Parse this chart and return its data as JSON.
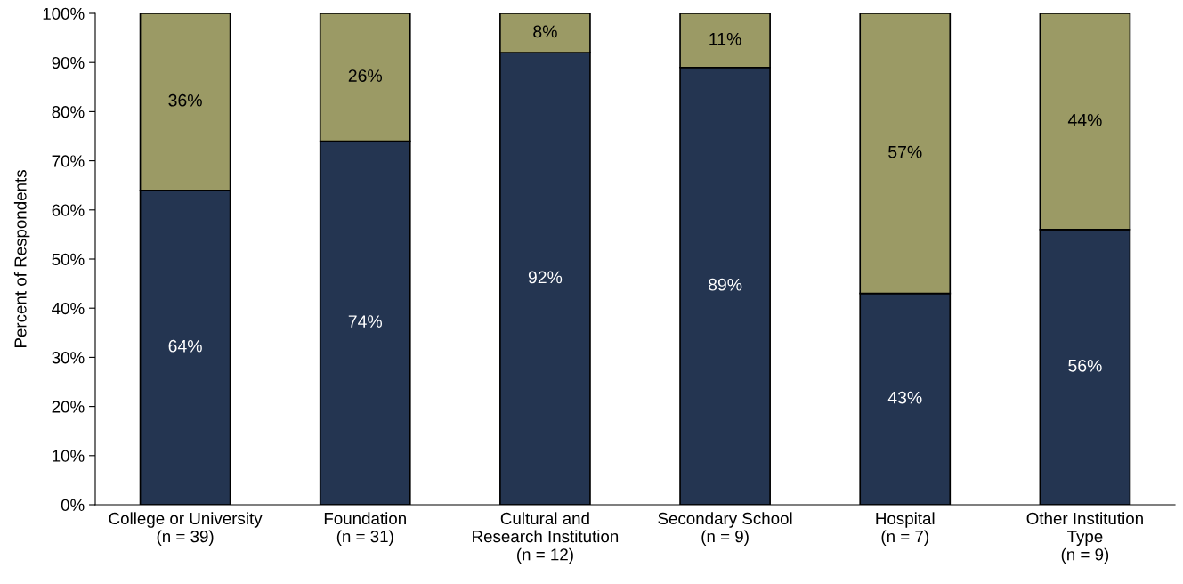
{
  "chart_data": {
    "type": "bar",
    "stacked": true,
    "ylabel": "Percent of Respondents",
    "categories": [
      "College or University\n(n = 39)",
      "Foundation\n(n = 31)",
      "Cultural and\nResearch Institution\n(n = 12)",
      "Secondary School\n(n = 9)",
      "Hospital\n(n = 7)",
      "Other Institution\nType\n(n = 9)"
    ],
    "series": [
      {
        "color": "#243551",
        "values": [
          64,
          74,
          92,
          89,
          43,
          56
        ],
        "value_labels": [
          "64%",
          "74%",
          "92%",
          "89%",
          "43%",
          "56%"
        ]
      },
      {
        "color": "#9b9a65",
        "values": [
          36,
          26,
          8,
          11,
          57,
          44
        ],
        "value_labels": [
          "36%",
          "26%",
          "8%",
          "11%",
          "57%",
          "44%"
        ]
      }
    ],
    "ylim": [
      0,
      100
    ],
    "yticks": [
      {
        "value": 0,
        "label": "0%"
      },
      {
        "value": 10,
        "label": "10%"
      },
      {
        "value": 20,
        "label": "20%"
      },
      {
        "value": 30,
        "label": "30%"
      },
      {
        "value": 40,
        "label": "40%"
      },
      {
        "value": 50,
        "label": "50%"
      },
      {
        "value": 60,
        "label": "60%"
      },
      {
        "value": 70,
        "label": "70%"
      },
      {
        "value": 80,
        "label": "80%"
      },
      {
        "value": 90,
        "label": "90%"
      },
      {
        "value": 100,
        "label": "100%"
      }
    ],
    "grid": false
  }
}
